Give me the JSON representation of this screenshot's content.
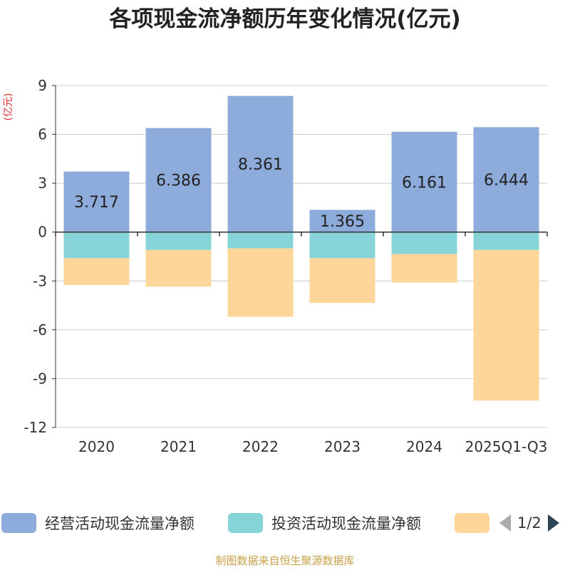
{
  "title": "各项现金流净额历年变化情况(亿元)",
  "chart_data": {
    "type": "bar",
    "stacked": true,
    "categories": [
      "2020",
      "2021",
      "2022",
      "2023",
      "2024",
      "2025Q1-Q3"
    ],
    "series": [
      {
        "name": "经营活动现金流量净额",
        "color": "#8eacdb",
        "values": [
          3.717,
          6.386,
          8.361,
          1.365,
          6.161,
          6.444
        ],
        "labels": [
          "3.717",
          "6.386",
          "8.361",
          "1.365",
          "6.161",
          "6.444"
        ]
      },
      {
        "name": "投资活动现金流量净额",
        "color": "#86d4d8",
        "values": [
          -1.6,
          -1.1,
          -1.0,
          -1.6,
          -1.35,
          -1.1
        ]
      },
      {
        "name": "",
        "color": "#ffd699",
        "values": [
          -1.65,
          -2.25,
          -4.2,
          -2.75,
          -1.75,
          -9.25
        ]
      }
    ],
    "ylabel": "(亿元)",
    "ylim": [
      -12,
      9
    ],
    "yticks": [
      9,
      6,
      3,
      0,
      -3,
      -6,
      -9,
      -12
    ],
    "ytick_labels": [
      "9",
      "6",
      "3",
      "0",
      "-3",
      "-6",
      "-9",
      "-12"
    ],
    "grid": true,
    "legend_position": "bottom"
  },
  "legend": {
    "items": [
      {
        "label": "经营活动现金流量净额",
        "color": "#8eacdb"
      },
      {
        "label": "投资活动现金流量净额",
        "color": "#86d4d8"
      },
      {
        "label": "",
        "color": "#ffd699"
      }
    ],
    "pager": "1/2"
  },
  "footer": "制图数据来自恒生聚源数据库"
}
